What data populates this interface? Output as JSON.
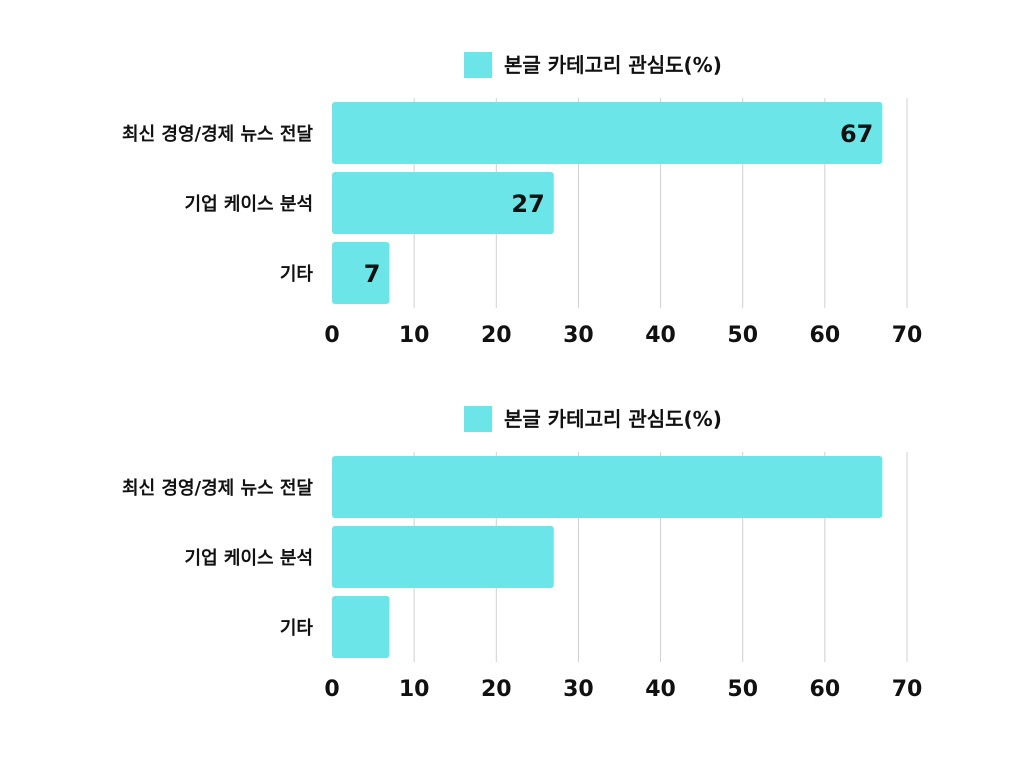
{
  "colors": {
    "bar": "#6ce5e8",
    "grid": "#d0d0d0",
    "text": "#111111"
  },
  "chart_data": [
    {
      "type": "bar",
      "orientation": "horizontal",
      "categories": [
        "최신 경영/경제 뉴스 전달",
        "기업 케이스 분석",
        "기타"
      ],
      "series": [
        {
          "name": "본글 카테고리 관심도(%)",
          "values": [
            67,
            27,
            7
          ]
        }
      ],
      "xlim": [
        0,
        70
      ],
      "ticks": [
        0,
        10,
        20,
        30,
        40,
        50,
        60,
        70
      ],
      "grid": true,
      "legend": "top",
      "show_value_labels": true
    },
    {
      "type": "bar",
      "orientation": "horizontal",
      "categories": [
        "최신 경영/경제 뉴스 전달",
        "기업 케이스 분석",
        "기타"
      ],
      "series": [
        {
          "name": "본글 카테고리 관심도(%)",
          "values": [
            67,
            27,
            7
          ]
        }
      ],
      "xlim": [
        0,
        70
      ],
      "ticks": [
        0,
        10,
        20,
        30,
        40,
        50,
        60,
        70
      ],
      "grid": true,
      "legend": "top",
      "show_value_labels": false
    }
  ]
}
